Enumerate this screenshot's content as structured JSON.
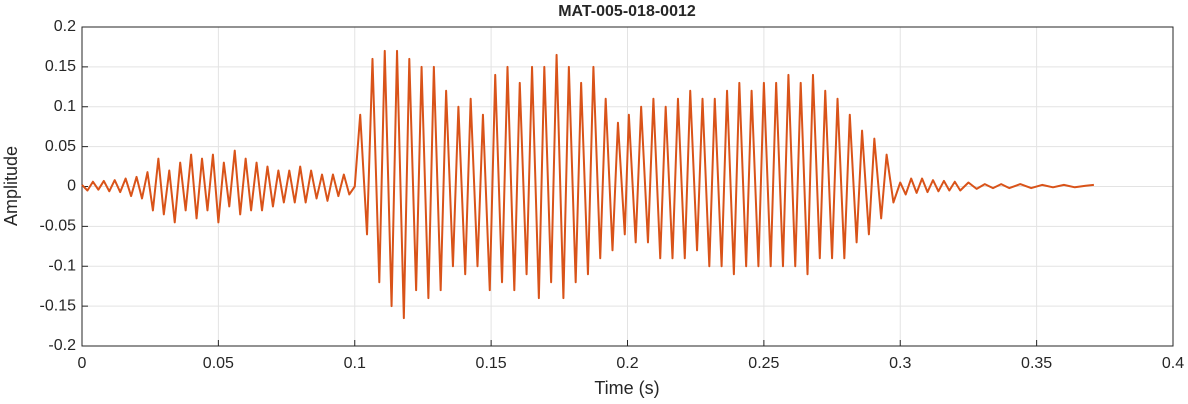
{
  "chart_data": {
    "type": "line",
    "title": "MAT-005-018-0012",
    "xlabel": "Time (s)",
    "ylabel": "Amplitude",
    "color": "#d95319",
    "grid": true,
    "xlim": [
      0,
      0.4
    ],
    "xticks": [
      0,
      0.05,
      0.1,
      0.15,
      0.2,
      0.25,
      0.3,
      0.35,
      0.4
    ],
    "ylim": [
      -0.2,
      0.2
    ],
    "yticks": [
      -0.2,
      -0.15,
      -0.1,
      -0.05,
      0,
      0.05,
      0.1,
      0.15,
      0.2
    ],
    "x": [
      0,
      0.002,
      0.004,
      0.006,
      0.008,
      0.01,
      0.012,
      0.014,
      0.016,
      0.018,
      0.02,
      0.022,
      0.024,
      0.026,
      0.028,
      0.03,
      0.032,
      0.034,
      0.036,
      0.038,
      0.04,
      0.042,
      0.044,
      0.046,
      0.048,
      0.05,
      0.052,
      0.054,
      0.056,
      0.058,
      0.06,
      0.062,
      0.064,
      0.066,
      0.068,
      0.07,
      0.072,
      0.074,
      0.076,
      0.078,
      0.08,
      0.082,
      0.084,
      0.086,
      0.088,
      0.09,
      0.092,
      0.094,
      0.096,
      0.098,
      0.1,
      0.102,
      0.1045,
      0.1065,
      0.109,
      0.111,
      0.1135,
      0.1155,
      0.118,
      0.12,
      0.1225,
      0.1245,
      0.127,
      0.129,
      0.1315,
      0.1335,
      0.136,
      0.138,
      0.1405,
      0.1425,
      0.145,
      0.147,
      0.1495,
      0.1515,
      0.154,
      0.156,
      0.1585,
      0.1605,
      0.163,
      0.165,
      0.1675,
      0.1695,
      0.172,
      0.174,
      0.1765,
      0.1785,
      0.181,
      0.183,
      0.1855,
      0.1875,
      0.19,
      0.192,
      0.1945,
      0.1965,
      0.199,
      0.2005,
      0.203,
      0.205,
      0.2075,
      0.2095,
      0.212,
      0.214,
      0.2165,
      0.2185,
      0.221,
      0.223,
      0.2255,
      0.2275,
      0.23,
      0.232,
      0.2345,
      0.2365,
      0.239,
      0.241,
      0.2435,
      0.2455,
      0.248,
      0.25,
      0.2525,
      0.2545,
      0.257,
      0.259,
      0.2615,
      0.2635,
      0.266,
      0.268,
      0.2705,
      0.2725,
      0.275,
      0.277,
      0.2795,
      0.2815,
      0.284,
      0.286,
      0.2885,
      0.2905,
      0.293,
      0.295,
      0.2975,
      0.3,
      0.302,
      0.304,
      0.306,
      0.308,
      0.31,
      0.312,
      0.314,
      0.316,
      0.318,
      0.32,
      0.322,
      0.325,
      0.328,
      0.331,
      0.334,
      0.337,
      0.34,
      0.344,
      0.348,
      0.352,
      0.356,
      0.36,
      0.364,
      0.368,
      0.371
    ],
    "values": [
      0.002,
      -0.005,
      0.006,
      -0.004,
      0.007,
      -0.006,
      0.008,
      -0.007,
      0.01,
      -0.012,
      0.012,
      -0.015,
      0.018,
      -0.03,
      0.035,
      -0.035,
      0.02,
      -0.045,
      0.03,
      -0.03,
      0.04,
      -0.04,
      0.035,
      -0.03,
      0.04,
      -0.045,
      0.03,
      -0.025,
      0.045,
      -0.035,
      0.035,
      -0.03,
      0.03,
      -0.03,
      0.025,
      -0.025,
      0.02,
      -0.02,
      0.02,
      -0.02,
      0.025,
      -0.02,
      0.02,
      -0.015,
      0.015,
      -0.018,
      0.015,
      -0.012,
      0.015,
      -0.01,
      0,
      0.09,
      -0.06,
      0.16,
      -0.12,
      0.17,
      -0.15,
      0.17,
      -0.165,
      0.16,
      -0.13,
      0.15,
      -0.14,
      0.15,
      -0.13,
      0.12,
      -0.1,
      0.1,
      -0.11,
      0.11,
      -0.1,
      0.09,
      -0.13,
      0.14,
      -0.12,
      0.15,
      -0.13,
      0.13,
      -0.11,
      0.15,
      -0.14,
      0.15,
      -0.12,
      0.165,
      -0.14,
      0.15,
      -0.12,
      0.13,
      -0.11,
      0.15,
      -0.09,
      0.11,
      -0.08,
      0.08,
      -0.06,
      0.09,
      -0.07,
      0.1,
      -0.07,
      0.11,
      -0.09,
      0.1,
      -0.09,
      0.11,
      -0.09,
      0.12,
      -0.08,
      0.11,
      -0.1,
      0.11,
      -0.1,
      0.12,
      -0.11,
      0.13,
      -0.1,
      0.12,
      -0.1,
      0.13,
      -0.1,
      0.13,
      -0.1,
      0.14,
      -0.1,
      0.13,
      -0.11,
      0.14,
      -0.09,
      0.12,
      -0.09,
      0.11,
      -0.09,
      0.09,
      -0.07,
      0.07,
      -0.06,
      0.06,
      -0.04,
      0.04,
      -0.02,
      0.005,
      -0.01,
      0.01,
      -0.008,
      0.01,
      -0.007,
      0.008,
      -0.006,
      0.007,
      -0.005,
      0.006,
      -0.005,
      0.005,
      -0.003,
      0.003,
      -0.002,
      0.003,
      -0.002,
      0.003,
      -0.002,
      0.002,
      -0.001,
      0.002,
      -0.001,
      0.001,
      0.002
    ]
  }
}
